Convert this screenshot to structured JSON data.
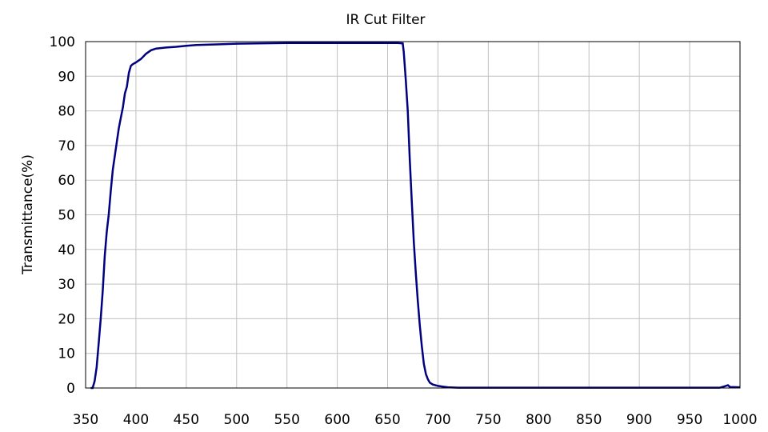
{
  "chart_data": {
    "type": "line",
    "title": "IR Cut Filter",
    "xlabel": "",
    "ylabel": "Transmittance(%)",
    "xlim": [
      350,
      1000
    ],
    "ylim": [
      0,
      100
    ],
    "grid": true,
    "line_color": "#000080",
    "x_ticks": [
      350,
      400,
      450,
      500,
      550,
      600,
      650,
      700,
      750,
      800,
      850,
      900,
      950,
      1000
    ],
    "y_ticks": [
      0,
      10,
      20,
      30,
      40,
      50,
      60,
      70,
      80,
      90,
      100
    ],
    "series": [
      {
        "x": [
          355,
          357,
          359,
          361,
          363,
          365,
          367,
          369,
          371,
          373,
          375,
          377,
          379,
          381,
          383,
          385,
          387,
          389,
          391,
          393,
          395,
          397,
          400,
          405,
          410,
          415,
          420,
          430,
          440,
          450,
          460,
          480,
          500,
          520,
          550,
          580,
          600,
          620,
          640,
          655,
          660,
          665,
          666,
          668,
          670,
          672,
          674,
          676,
          678,
          680,
          682,
          684,
          686,
          688,
          690,
          692,
          695,
          700,
          705,
          710,
          720,
          750,
          800,
          850,
          900,
          950,
          980,
          985,
          988,
          990,
          1000
        ],
        "y": [
          0,
          0,
          2,
          6,
          13,
          20,
          28,
          38,
          45,
          50,
          57,
          63,
          67,
          71,
          75,
          78,
          81,
          85,
          87,
          91,
          93,
          93.5,
          94,
          95,
          96.5,
          97.5,
          98,
          98.3,
          98.5,
          98.8,
          99,
          99.2,
          99.4,
          99.5,
          99.6,
          99.6,
          99.6,
          99.6,
          99.6,
          99.6,
          99.6,
          99.5,
          97,
          89,
          80,
          66,
          54,
          42,
          33,
          25,
          18,
          12,
          7,
          4,
          2.5,
          1.5,
          1,
          0.6,
          0.4,
          0.2,
          0.1,
          0.1,
          0.1,
          0.1,
          0.1,
          0.1,
          0.1,
          0.5,
          0.8,
          0.3,
          0.2
        ]
      }
    ]
  }
}
